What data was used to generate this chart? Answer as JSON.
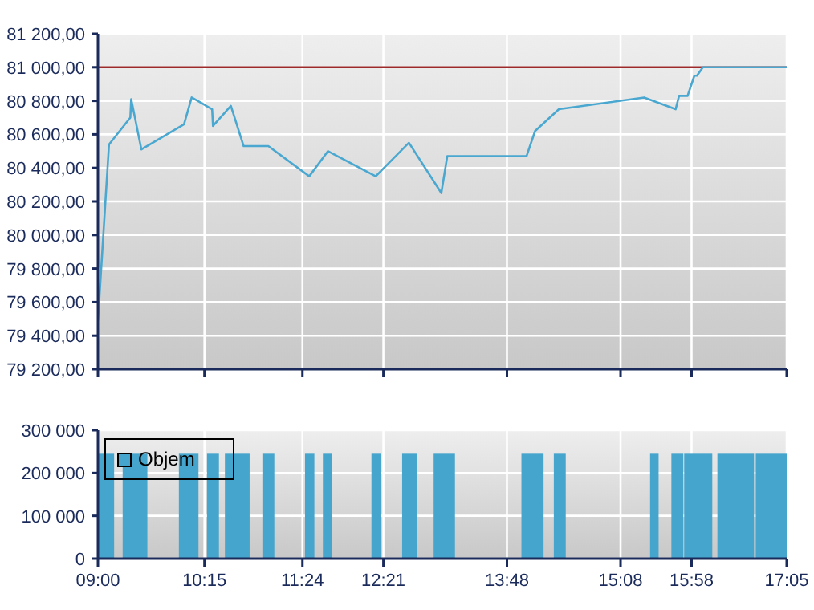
{
  "chart_data": [
    {
      "type": "line",
      "x": [
        9,
        9.13,
        9.38,
        9.39,
        9.51,
        10.01,
        10.1,
        10.34,
        10.35,
        10.56,
        10.71,
        11.0,
        11.48,
        11.7,
        12.26,
        12.65,
        13.03,
        13.1,
        14.03,
        14.13,
        14.41,
        15.41,
        15.78,
        15.82,
        15.92,
        16.0,
        16.03,
        16.1,
        17.0833
      ],
      "series": [
        {
          "color": "#4aa8d0",
          "values": [
            79490,
            80540,
            80700,
            80810,
            80510,
            80660,
            80820,
            80750,
            80650,
            80770,
            80530,
            80530,
            80350,
            80500,
            80350,
            80550,
            80250,
            80470,
            80470,
            80620,
            80750,
            80820,
            80750,
            80830,
            80830,
            80950,
            80950,
            81000,
            81000
          ]
        }
      ],
      "xlim": [
        9,
        17.0833
      ],
      "xticks": [
        {
          "value": 9,
          "label": null
        },
        {
          "value": 10.25,
          "label": null
        },
        {
          "value": 11.4,
          "label": null
        },
        {
          "value": 12.35,
          "label": null
        },
        {
          "value": 13.8,
          "label": null
        },
        {
          "value": 15.1333,
          "label": null
        },
        {
          "value": 15.9667,
          "label": null
        },
        {
          "value": 17.0833,
          "label": null
        }
      ],
      "ylim": [
        79200,
        81200
      ],
      "yticks": [
        {
          "value": 79200,
          "label": "79 200,00"
        },
        {
          "value": 79400,
          "label": "79 400,00"
        },
        {
          "value": 79600,
          "label": "79 600,00"
        },
        {
          "value": 79800,
          "label": "79 800,00"
        },
        {
          "value": 80000,
          "label": "80 000,00"
        },
        {
          "value": 80200,
          "label": "80 200,00"
        },
        {
          "value": 80400,
          "label": "80 400,00"
        },
        {
          "value": 80600,
          "label": "80 600,00"
        },
        {
          "value": 80800,
          "label": "80 800,00"
        },
        {
          "value": 81000,
          "label": "81 000,00"
        },
        {
          "value": 81200,
          "label": "81 200,00"
        }
      ],
      "ref_lines": [
        {
          "axis": "y",
          "value": 81000,
          "color": "#9c2a2a"
        }
      ],
      "tick_labels": "y",
      "grid": true,
      "marker": "none",
      "line_style": "solid"
    },
    {
      "type": "histogram",
      "bins": [
        9,
        9.19,
        9.29,
        9.58,
        9.95,
        10.18,
        10.28,
        10.42,
        10.49,
        10.78,
        10.93,
        11.07,
        11.43,
        11.54,
        11.64,
        11.75,
        12.21,
        12.32,
        12.57,
        12.74,
        12.94,
        13.19,
        13.97,
        14.23,
        14.35,
        14.49,
        15.48,
        15.58,
        15.73,
        15.87,
        15.88,
        16.21,
        16.27,
        16.7,
        16.72,
        17.0833
      ],
      "series": [
        {
          "name": "Objem",
          "color": "#45a5cc",
          "values": [
            245000,
            0,
            245000,
            0,
            245000,
            0,
            245000,
            0,
            245000,
            0,
            245000,
            0,
            245000,
            0,
            245000,
            0,
            245000,
            0,
            245000,
            0,
            245000,
            0,
            245000,
            0,
            245000,
            0,
            245000,
            0,
            245000,
            0,
            245000,
            0,
            245000,
            0,
            245000
          ]
        }
      ],
      "xlim": [
        9,
        17.0833
      ],
      "xticks": [
        {
          "value": 9,
          "label": "09:00"
        },
        {
          "value": 10.25,
          "label": "10:15"
        },
        {
          "value": 11.4,
          "label": "11:24"
        },
        {
          "value": 12.35,
          "label": "12:21"
        },
        {
          "value": 13.8,
          "label": "13:48"
        },
        {
          "value": 15.1333,
          "label": "15:08"
        },
        {
          "value": 15.9667,
          "label": "15:58"
        },
        {
          "value": 17.0833,
          "label": "17:05"
        }
      ],
      "ylim": [
        0,
        300000
      ],
      "yticks": [
        0,
        {
          "value": 100000,
          "label": "100 000"
        },
        {
          "value": 200000,
          "label": "200 000"
        },
        {
          "value": 300000,
          "label": "300 000"
        }
      ],
      "grid": true,
      "legend": "top left"
    }
  ]
}
